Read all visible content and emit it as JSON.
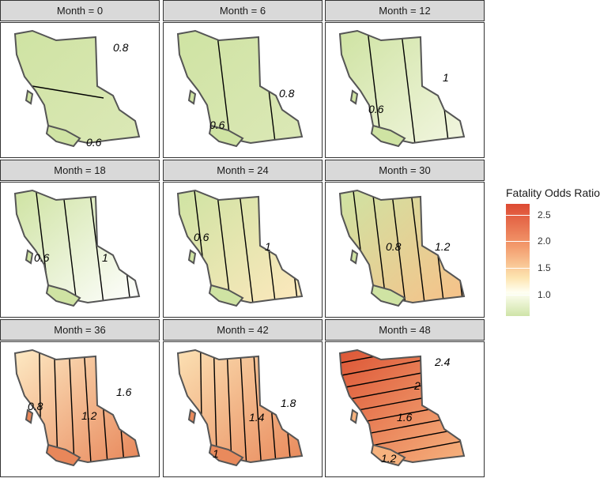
{
  "chart_data": {
    "type": "heatmap",
    "facets": [
      {
        "label": "Month = 0",
        "contours": [
          "0.8",
          "0.6"
        ],
        "fill_low": "#dbe8b6",
        "fill_high": "#cfe3a3"
      },
      {
        "label": "Month = 6",
        "contours": [
          "0.8",
          "0.6"
        ],
        "fill_low": "#dbe8b6",
        "fill_high": "#cfe3a3"
      },
      {
        "label": "Month = 12",
        "contours": [
          "1",
          "0.6"
        ],
        "fill_low": "#f2f6e0",
        "fill_high": "#cfe3a3"
      },
      {
        "label": "Month = 18",
        "contours": [
          "1",
          "0.6"
        ],
        "fill_low": "#ffffff",
        "fill_high": "#cfe3a3"
      },
      {
        "label": "Month = 24",
        "contours": [
          "0.6",
          "1"
        ],
        "fill_low": "#fde8bd",
        "fill_high": "#cfe3a3"
      },
      {
        "label": "Month = 30",
        "contours": [
          "0.8",
          "1.2"
        ],
        "fill_low": "#f7c189",
        "fill_high": "#cfe3a3"
      },
      {
        "label": "Month = 36",
        "contours": [
          "0.8",
          "1.2",
          "1.6"
        ],
        "fill_low": "#e8875a",
        "fill_high": "#fde9c3"
      },
      {
        "label": "Month = 42",
        "contours": [
          "1",
          "1.4",
          "1.8"
        ],
        "fill_low": "#e98a5c",
        "fill_high": "#fbe0b3"
      },
      {
        "label": "Month = 48",
        "contours": [
          "2.4",
          "2",
          "1.6",
          "1.2"
        ],
        "fill_low": "#f6b27e",
        "fill_high": "#dd5636"
      }
    ],
    "legend": {
      "title": "Fatality Odds Ratio",
      "ticks": [
        "2.5",
        "2.0",
        "1.5",
        "1.0"
      ],
      "tick_values": [
        2.5,
        2.0,
        1.5,
        1.0
      ],
      "range": [
        0.6,
        2.7
      ],
      "colors": [
        "#cfe4a8",
        "#fffff2",
        "#fde5b1",
        "#f39b6d",
        "#dd4a33"
      ],
      "placement": "right"
    }
  }
}
